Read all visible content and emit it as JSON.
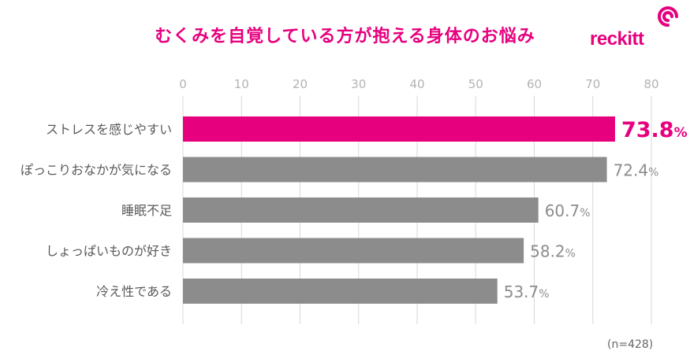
{
  "title": "むくみを自覚している方が抱える身体のお悩み",
  "brand": {
    "name": "reckitt",
    "color": "#E6007E"
  },
  "note": "(n=428)",
  "colors": {
    "highlight": "#E6007E",
    "bar": "#8C8C8C",
    "grid": "#D9D9D9",
    "tick_text": "#B3B3B3",
    "label_text": "#595959",
    "value_text": "#8C8C8C"
  },
  "chart_data": {
    "type": "bar",
    "orientation": "horizontal",
    "categories": [
      "ストレスを感じやすい",
      "ぽっこりおなかが気になる",
      "睡眠不足",
      "しょっぱいものが好き",
      "冷え性である"
    ],
    "values": [
      73.8,
      72.4,
      60.7,
      58.2,
      53.7
    ],
    "value_labels": [
      "73.8",
      "72.4",
      "60.7",
      "58.2",
      "53.7"
    ],
    "unit": "%",
    "highlight_index": 0,
    "xlim": [
      0,
      80
    ],
    "xticks": [
      0,
      10,
      20,
      30,
      40,
      50,
      60,
      70,
      80
    ],
    "xtick_position": "top",
    "grid": true,
    "legend": false
  }
}
